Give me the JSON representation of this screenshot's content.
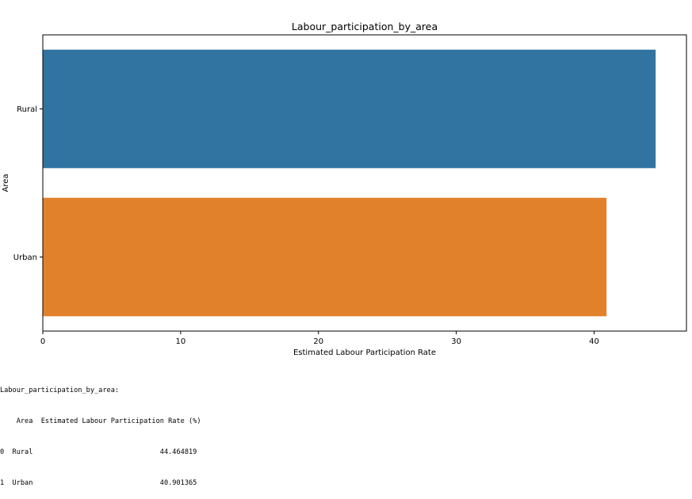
{
  "chart_data": {
    "type": "bar",
    "orientation": "horizontal",
    "title": "Labour_participation_by_area",
    "xlabel": "Estimated Labour Participation Rate",
    "ylabel": "Area",
    "categories": [
      "Rural",
      "Urban"
    ],
    "values": [
      44.464819,
      40.901365
    ],
    "colors": [
      "#3274a1",
      "#e1812c"
    ],
    "xlim": [
      0,
      46.7
    ],
    "xticks": [
      0,
      10,
      20,
      30,
      40
    ],
    "grid": false
  },
  "output": {
    "heading": "Labour_participation_by_area:",
    "header_row": "    Area  Estimated Labour Participation Rate (%)",
    "rows": [
      "0  Rural                               44.464819",
      "1  Urban                               40.901365"
    ]
  }
}
